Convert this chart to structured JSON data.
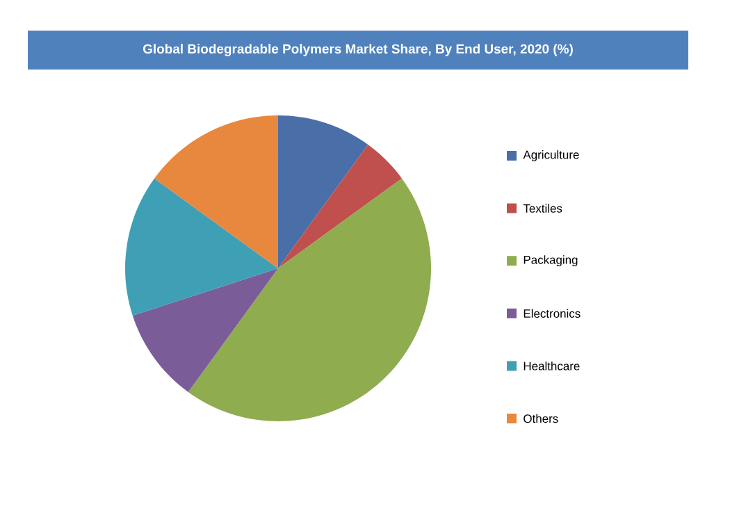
{
  "chart_data": {
    "type": "pie",
    "title": "Global Biodegradable Polymers Market Share, By End User, 2020 (%)",
    "categories": [
      "Agriculture",
      "Textiles",
      "Packaging",
      "Electronics",
      "Healthcare",
      "Others"
    ],
    "values": [
      10,
      5,
      45,
      10,
      15,
      15
    ],
    "colors": [
      "#4a6fa8",
      "#c0504d",
      "#8fac4f",
      "#7a5c99",
      "#3f9fb5",
      "#e8873e"
    ],
    "legend": "right"
  }
}
